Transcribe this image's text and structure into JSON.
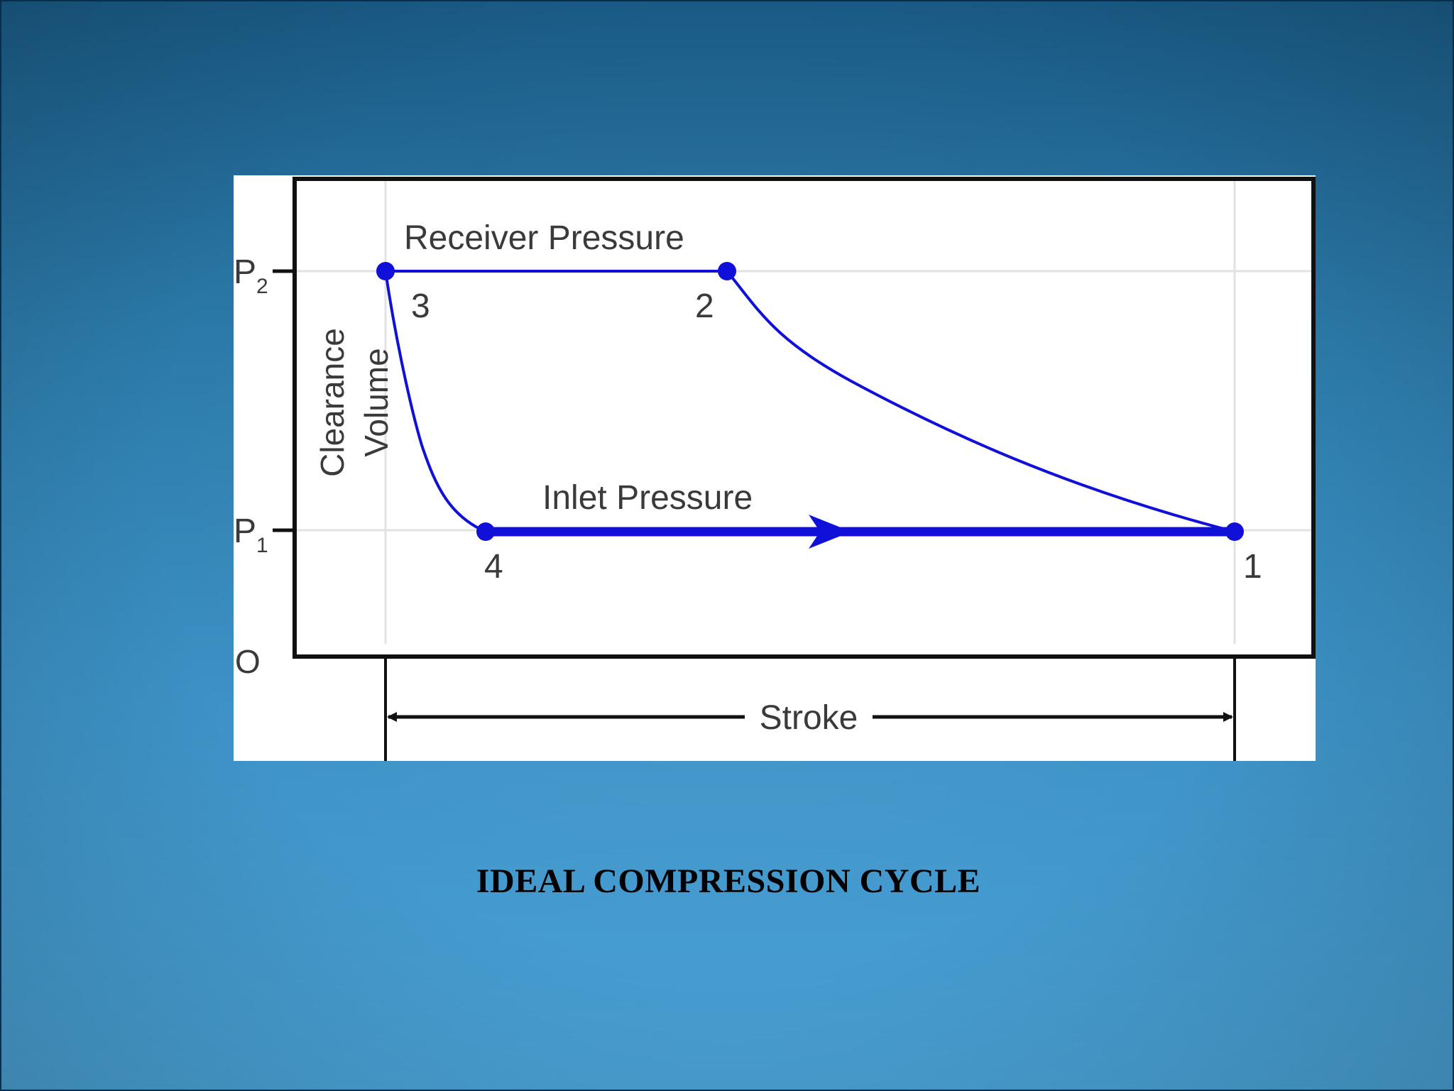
{
  "caption": "IDEAL COMPRESSION CYCLE",
  "diagram": {
    "labels": {
      "receiver_pressure": "Receiver Pressure",
      "inlet_pressure": "Inlet Pressure",
      "clearance_line1": "Clearance",
      "clearance_line2": "Volume",
      "stroke": "Stroke",
      "p2_main": "P",
      "p2_sub": "2",
      "p1_main": "P",
      "p1_sub": "1",
      "origin": "O",
      "point_1": "1",
      "point_2": "2",
      "point_3": "3",
      "point_4": "4"
    },
    "colors": {
      "cycle": "#1010d8",
      "frame": "#111111",
      "grid": "#e2e2e2",
      "text": "#3a3a3a"
    }
  }
}
